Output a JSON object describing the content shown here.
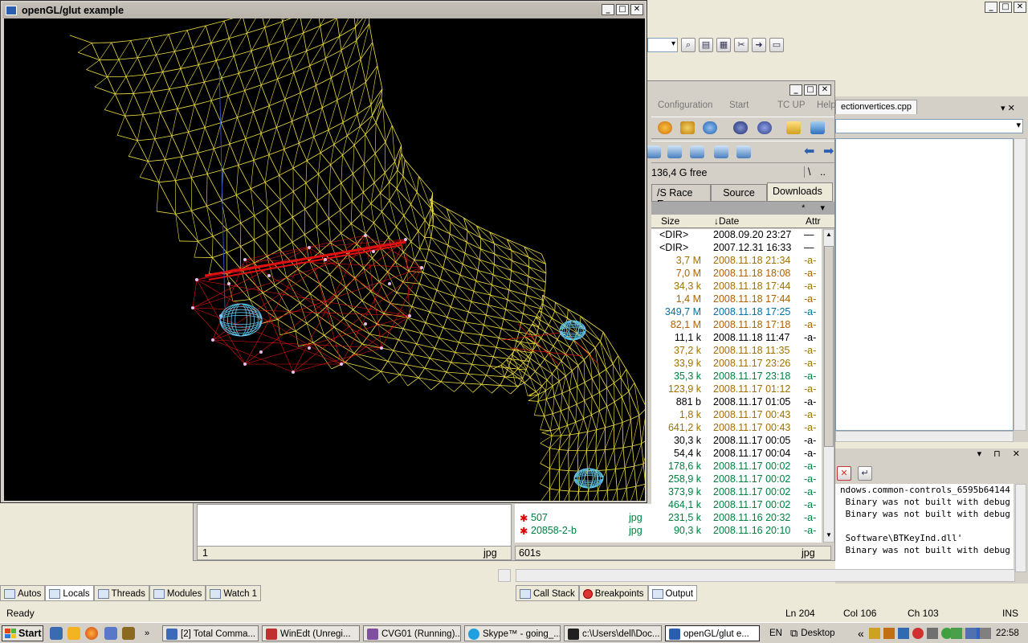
{
  "visual_studio": {
    "window_buttons": [
      "_",
      "□",
      "✕"
    ],
    "editor": {
      "tab_label": "ectionvertices.cpp",
      "pin_controls": "▾ ✕"
    },
    "output": {
      "lines": [
        "ndows.common-controls_6595b64144",
        " Binary was not built with debug",
        " Binary was not built with debug",
        "",
        " Software\\BTKeyInd.dll'",
        " Binary was not built with debug"
      ],
      "pin_controls": "▾ ⊓ ✕"
    },
    "left_tabs": [
      {
        "label": "Autos",
        "active": false
      },
      {
        "label": "Locals",
        "active": true
      },
      {
        "label": "Threads",
        "active": false
      },
      {
        "label": "Modules",
        "active": false
      },
      {
        "label": "Watch 1",
        "active": false
      }
    ],
    "right_tabs": [
      {
        "label": "Call Stack",
        "active": false
      },
      {
        "label": "Breakpoints",
        "active": false
      },
      {
        "label": "Output",
        "active": true
      }
    ],
    "status": {
      "ready": "Ready",
      "ln": "Ln 204",
      "col": "Col 106",
      "ch": "Ch 103",
      "mode": "INS"
    }
  },
  "total_commander": {
    "menu": [
      "Configuration",
      "Start",
      "TC UP",
      "Help"
    ],
    "free_space": "136,4 G free",
    "root_btn": "\\",
    "up_btn": "..",
    "drive_tabs": [
      {
        "label": "/S Race Eng",
        "active": false
      },
      {
        "label": "Source",
        "active": false
      },
      {
        "label": "Downloads",
        "active": true
      }
    ],
    "path_controls": "* ▾",
    "columns": {
      "size": "Size",
      "date": "↓Date",
      "attr": "Attr"
    },
    "rows": [
      {
        "size": "<DIR>",
        "date": "2008.09.20 23:27",
        "attr": "—",
        "color": "#000000"
      },
      {
        "size": "<DIR>",
        "date": "2007.12.31 16:33",
        "attr": "—",
        "color": "#000000"
      },
      {
        "size": "3,7 M",
        "date": "2008.11.18 21:34",
        "attr": "-a-",
        "color": "#a07000"
      },
      {
        "size": "7,0 M",
        "date": "2008.11.18 18:08",
        "attr": "-a-",
        "color": "#b06000"
      },
      {
        "size": "34,3 k",
        "date": "2008.11.18 17:44",
        "attr": "-a-",
        "color": "#a07000"
      },
      {
        "size": "1,4 M",
        "date": "2008.11.18 17:44",
        "attr": "-a-",
        "color": "#b06000"
      },
      {
        "size": "349,7 M",
        "date": "2008.11.18 17:25",
        "attr": "-a-",
        "color": "#0070a0"
      },
      {
        "size": "82,1 M",
        "date": "2008.11.18 17:18",
        "attr": "-a-",
        "color": "#b06000"
      },
      {
        "size": "11,1 k",
        "date": "2008.11.18 11:47",
        "attr": "-a-",
        "color": "#000000"
      },
      {
        "size": "37,2 k",
        "date": "2008.11.18 11:35",
        "attr": "-a-",
        "color": "#a07000"
      },
      {
        "size": "33,9 k",
        "date": "2008.11.17 23:26",
        "attr": "-a-",
        "color": "#a07000"
      },
      {
        "size": "35,3 k",
        "date": "2008.11.17 23:18",
        "attr": "-a-",
        "color": "#008040"
      },
      {
        "size": "123,9 k",
        "date": "2008.11.17 01:12",
        "attr": "-a-",
        "color": "#a07000"
      },
      {
        "size": "881 b",
        "date": "2008.11.17 01:05",
        "attr": "-a-",
        "color": "#000000"
      },
      {
        "size": "1,8 k",
        "date": "2008.11.17 00:43",
        "attr": "-a-",
        "color": "#a07000"
      },
      {
        "size": "641,2 k",
        "date": "2008.11.17 00:43",
        "attr": "-a-",
        "color": "#a07000"
      },
      {
        "size": "30,3 k",
        "date": "2008.11.17 00:05",
        "attr": "-a-",
        "color": "#000000"
      },
      {
        "size": "54,4 k",
        "date": "2008.11.17 00:04",
        "attr": "-a-",
        "color": "#000000"
      },
      {
        "size": "178,6 k",
        "date": "2008.11.17 00:02",
        "attr": "-a-",
        "color": "#008040"
      },
      {
        "size": "258,9 k",
        "date": "2008.11.17 00:02",
        "attr": "-a-",
        "color": "#008040"
      },
      {
        "size": "373,9 k",
        "date": "2008.11.17 00:02",
        "attr": "-a-",
        "color": "#008040"
      },
      {
        "size": "464,1 k",
        "date": "2008.11.17 00:02",
        "attr": "-a-",
        "color": "#008040"
      },
      {
        "size": "231,5 k",
        "date": "2008.11.16 20:32",
        "attr": "-a-",
        "color": "#008040"
      },
      {
        "size": "90,3 k",
        "date": "2008.11.16 20:10",
        "attr": "-a-",
        "color": "#008040"
      }
    ],
    "left_files": [
      {
        "name": "507",
        "ext": "jpg"
      },
      {
        "name": "20858-2-b",
        "ext": "jpg"
      }
    ],
    "left_status": {
      "count": "1",
      "ext": "jpg"
    },
    "right_status": {
      "count": "601s",
      "ext": "jpg"
    }
  },
  "opengl_window": {
    "title": "openGL/glut example",
    "buttons": [
      "_",
      "□",
      "✕"
    ]
  },
  "taskbar": {
    "start": "Start",
    "tasks": [
      {
        "label": "[2] Total Comma...",
        "icon_color": "#3c6ab8",
        "active": false
      },
      {
        "label": "WinEdt  (Unregi...",
        "icon_color": "#c03030",
        "active": false
      },
      {
        "label": "CVG01 (Running)...",
        "icon_color": "#8050a0",
        "active": false
      },
      {
        "label": "Skype™ - going_...",
        "icon_color": "#1ea0e0",
        "active": false
      },
      {
        "label": "c:\\Users\\dell\\Doc...",
        "icon_color": "#202020",
        "active": false
      },
      {
        "label": "openGL/glut e...",
        "icon_color": "#2a5fb0",
        "active": true
      }
    ],
    "lang": "EN",
    "desktop": "Desktop",
    "chevron": "«",
    "clock": "22:58"
  },
  "colors": {
    "wireframe": "#f0e040",
    "red_mesh": "#e01010",
    "cyan_sphere": "#60c8f0",
    "vertex": "#e8c0f0"
  }
}
